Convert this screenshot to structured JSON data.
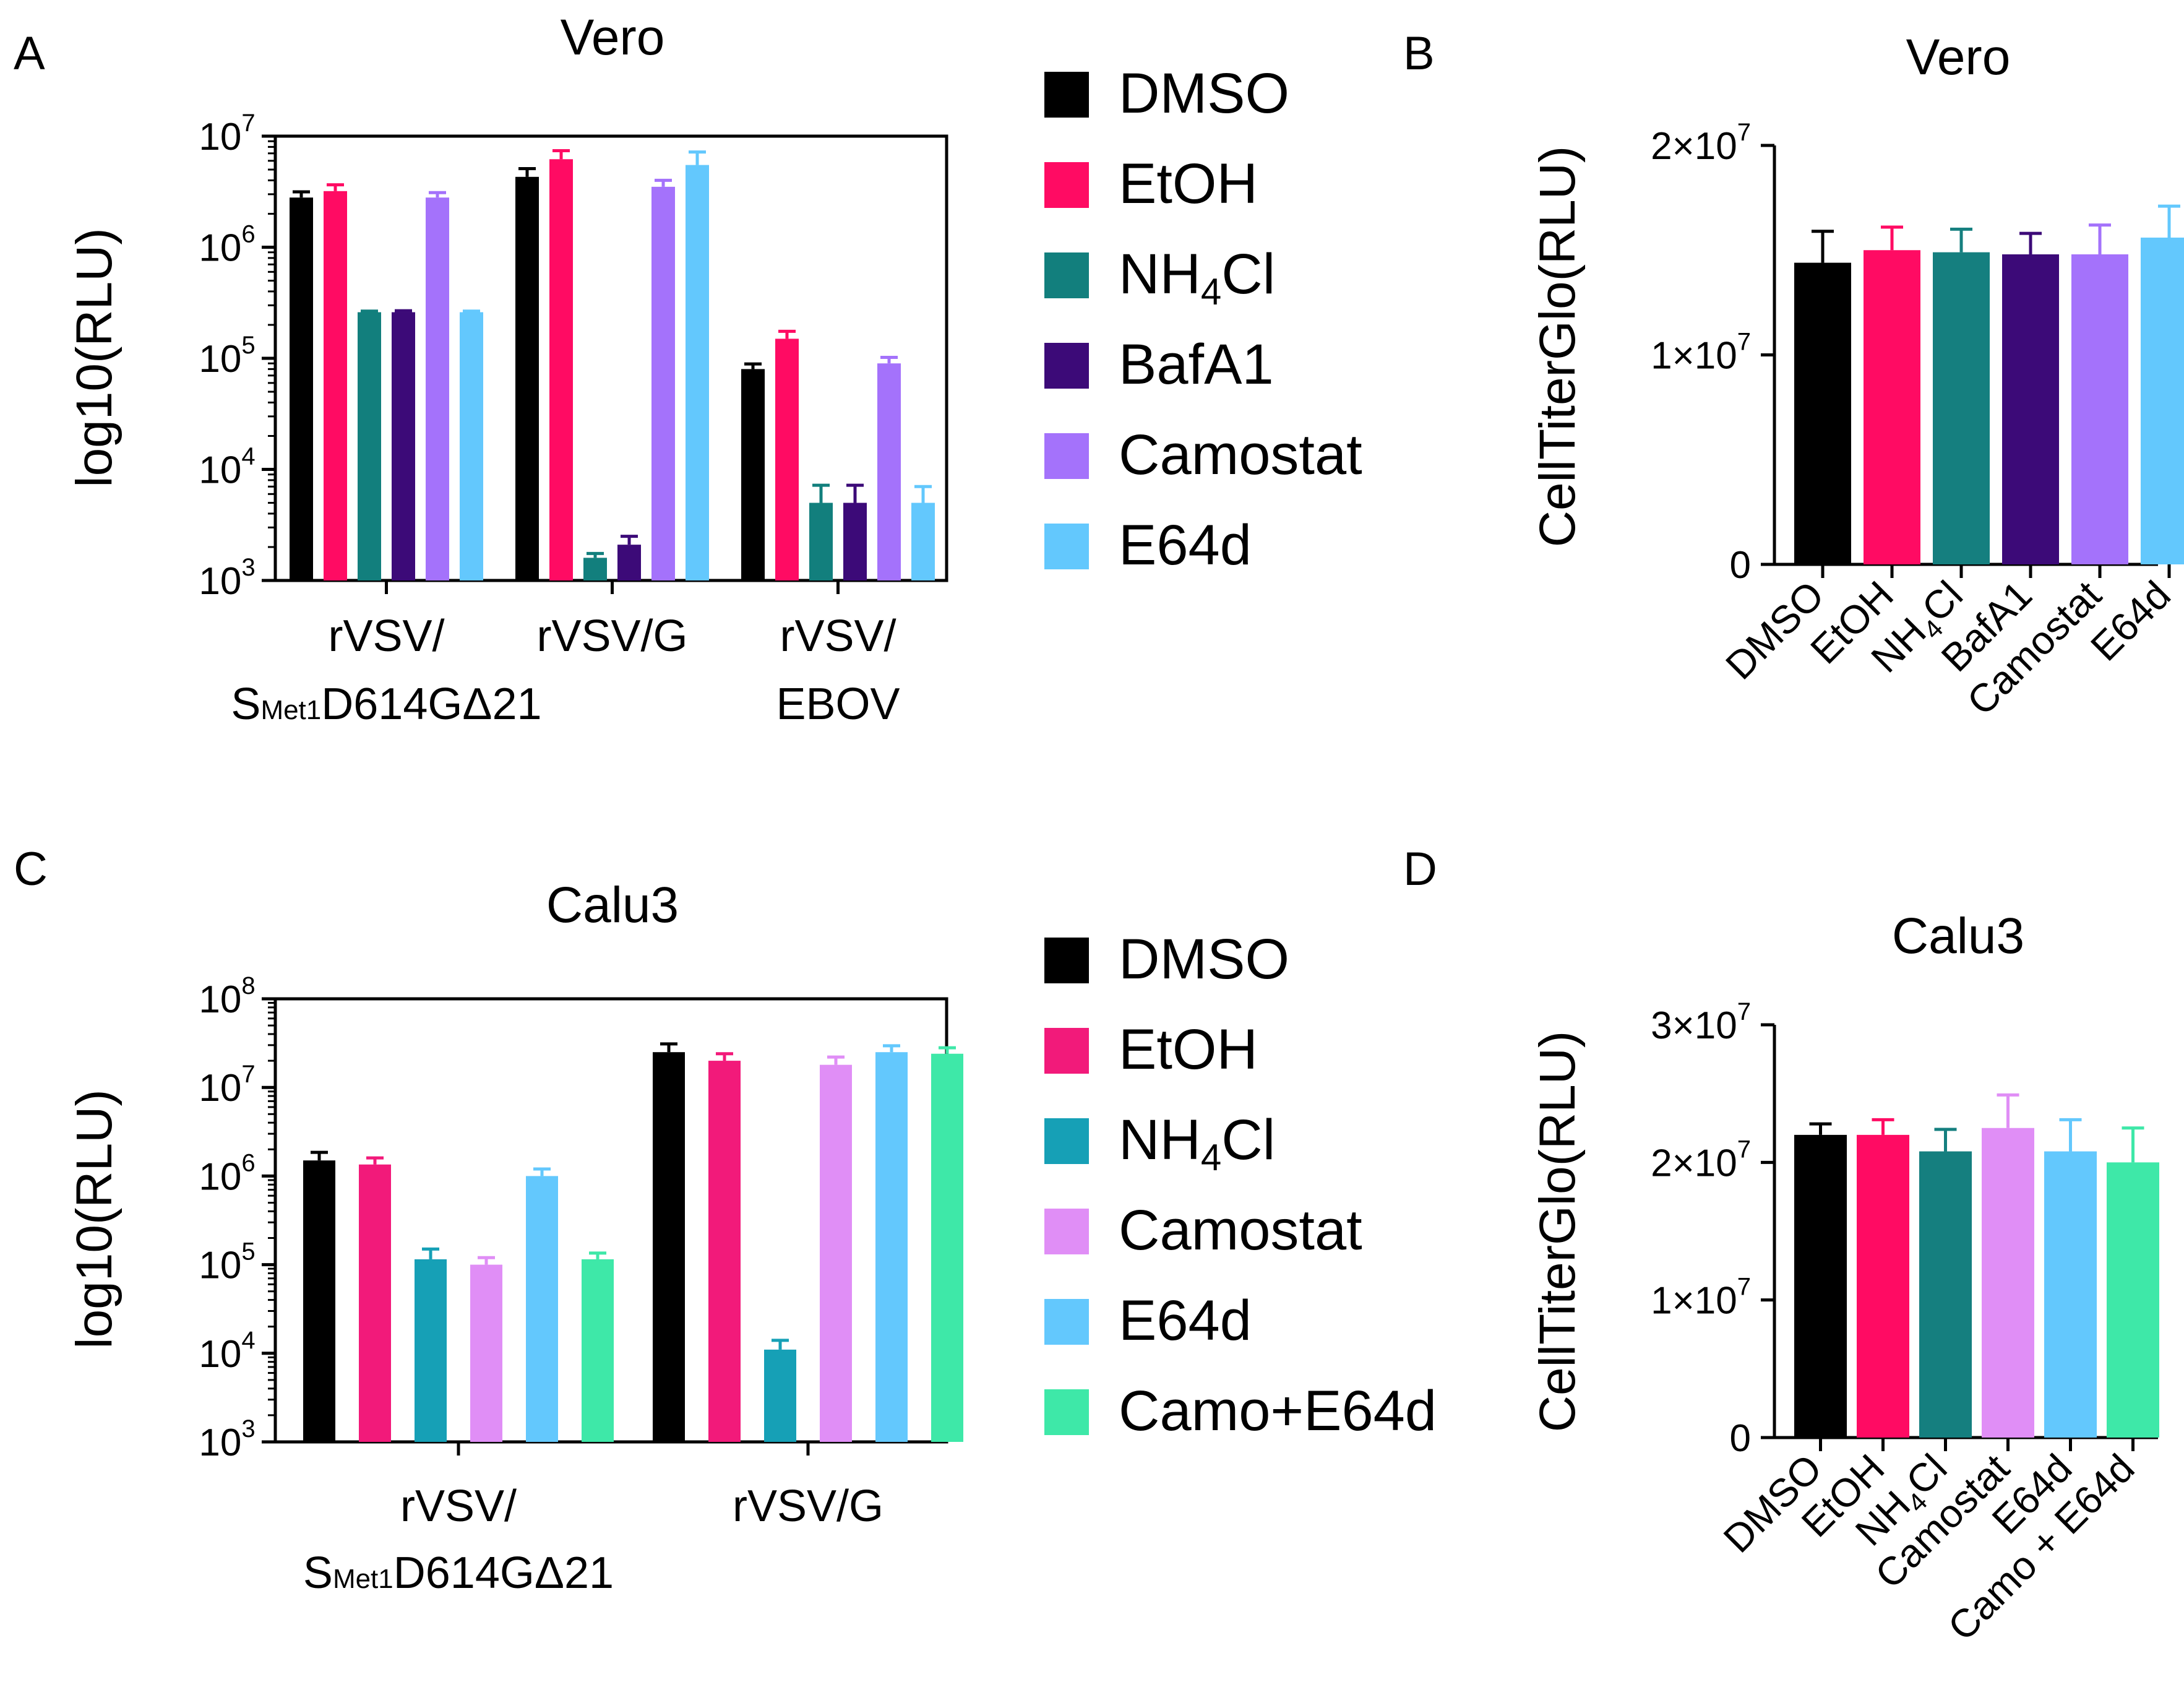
{
  "colors": {
    "DMSO": "#000000",
    "EtOH": "#ff0b63",
    "NH4Cl": "#127f7d",
    "NH4Cl_calu": "#16a0b6",
    "NH4Cl_D": "#157f7f",
    "BafA1": "#3c0a78",
    "Camostat": "#a472fb",
    "Camostat_calu": "#e08ef6",
    "E64d": "#63c8fd",
    "Camo+E64d": "#3ee8a8"
  },
  "chart_data": [
    {
      "id": "A",
      "panel_label": "A",
      "type": "bar",
      "title": "Vero",
      "ylabel": "log10(RLU)",
      "yscale": "log",
      "ylim_exp": [
        3,
        7
      ],
      "y_ticks": [
        {
          "base": "10",
          "exp": "3"
        },
        {
          "base": "10",
          "exp": "4"
        },
        {
          "base": "10",
          "exp": "5"
        },
        {
          "base": "10",
          "exp": "6"
        },
        {
          "base": "10",
          "exp": "7"
        }
      ],
      "categories": [
        {
          "line1": "rVSV/",
          "line2_main": "S",
          "line2_sub": "Met1",
          "line2_rest": "D614GΔ21"
        },
        {
          "line1": "rVSV/G",
          "line2_main": "",
          "line2_sub": "",
          "line2_rest": ""
        },
        {
          "line1": "rVSV/",
          "line2_main": "EBOV",
          "line2_sub": "",
          "line2_rest": ""
        }
      ],
      "series": [
        {
          "name": "DMSO",
          "color": "#000000",
          "values": [
            2800000,
            4300000,
            80000
          ],
          "errors": [
            350000,
            800000,
            9000
          ]
        },
        {
          "name": "EtOH",
          "color": "#ff0b63",
          "values": [
            3200000,
            6200000,
            150000
          ],
          "errors": [
            450000,
            1200000,
            25000
          ]
        },
        {
          "name": "NH4Cl",
          "color": "#127f7d",
          "values": [
            260000,
            1600,
            5000
          ],
          "errors": [
            6000,
            150,
            2200
          ]
        },
        {
          "name": "BafA1",
          "color": "#3c0a78",
          "values": [
            260000,
            2100,
            5000
          ],
          "errors": [
            8000,
            400,
            2200
          ]
        },
        {
          "name": "Camostat",
          "color": "#a472fb",
          "values": [
            2800000,
            3500000,
            90000
          ],
          "errors": [
            300000,
            500000,
            12000
          ]
        },
        {
          "name": "E64d",
          "color": "#63c8fd",
          "values": [
            260000,
            5500000,
            5000
          ],
          "errors": [
            6000,
            1700000,
            2000
          ]
        }
      ],
      "legend": [
        {
          "main": "DMSO",
          "sub": "",
          "rest": "",
          "color": "#000000"
        },
        {
          "main": "EtOH",
          "sub": "",
          "rest": "",
          "color": "#ff0b63"
        },
        {
          "main": "NH",
          "sub": "4",
          "rest": "Cl",
          "color": "#127f7d"
        },
        {
          "main": "BafA1",
          "sub": "",
          "rest": "",
          "color": "#3c0a78"
        },
        {
          "main": "Camostat",
          "sub": "",
          "rest": "",
          "color": "#a472fb"
        },
        {
          "main": "E64d",
          "sub": "",
          "rest": "",
          "color": "#63c8fd"
        }
      ]
    },
    {
      "id": "B",
      "panel_label": "B",
      "type": "bar",
      "title": "Vero",
      "ylabel": "CellTiterGlo(RLU)",
      "yscale": "linear",
      "ylim": [
        0,
        20000000
      ],
      "y_ticks": [
        {
          "value": 0,
          "text": "0",
          "exp": ""
        },
        {
          "value": 10000000,
          "text": "1×10",
          "exp": "7"
        },
        {
          "value": 20000000,
          "text": "2×10",
          "exp": "7"
        }
      ],
      "bars": [
        {
          "label_main": "DMSO",
          "label_sub": "",
          "label_rest": "",
          "color": "#000000",
          "value": 14400000,
          "error": 1500000
        },
        {
          "label_main": "EtOH",
          "label_sub": "",
          "label_rest": "",
          "color": "#ff0b63",
          "value": 15000000,
          "error": 1100000
        },
        {
          "label_main": "NH",
          "label_sub": "4",
          "label_rest": "Cl",
          "color": "#157f7f",
          "value": 14900000,
          "error": 1100000
        },
        {
          "label_main": "BafA1",
          "label_sub": "",
          "label_rest": "",
          "color": "#3c0a78",
          "value": 14800000,
          "error": 1000000
        },
        {
          "label_main": "Camostat",
          "label_sub": "",
          "label_rest": "",
          "color": "#a472fb",
          "value": 14800000,
          "error": 1400000
        },
        {
          "label_main": "E64d",
          "label_sub": "",
          "label_rest": "",
          "color": "#63c8fd",
          "value": 15600000,
          "error": 1500000
        }
      ]
    },
    {
      "id": "C",
      "panel_label": "C",
      "type": "bar",
      "title": "Calu3",
      "ylabel": "log10(RLU)",
      "yscale": "log",
      "ylim_exp": [
        3,
        8
      ],
      "y_ticks": [
        {
          "base": "10",
          "exp": "3"
        },
        {
          "base": "10",
          "exp": "4"
        },
        {
          "base": "10",
          "exp": "5"
        },
        {
          "base": "10",
          "exp": "6"
        },
        {
          "base": "10",
          "exp": "7"
        },
        {
          "base": "10",
          "exp": "8"
        }
      ],
      "categories": [
        {
          "line1": "rVSV/",
          "line2_main": "S",
          "line2_sub": "Met1",
          "line2_rest": "D614GΔ21"
        },
        {
          "line1": "rVSV/G",
          "line2_main": "",
          "line2_sub": "",
          "line2_rest": ""
        }
      ],
      "series": [
        {
          "name": "DMSO",
          "color": "#000000",
          "values": [
            1500000,
            25000000
          ],
          "errors": [
            350000,
            6000000
          ]
        },
        {
          "name": "EtOH",
          "color": "#f21a7a",
          "values": [
            1350000,
            20000000
          ],
          "errors": [
            250000,
            4000000
          ]
        },
        {
          "name": "NH4Cl",
          "color": "#16a0b6",
          "values": [
            115000,
            11000
          ],
          "errors": [
            35000,
            3000
          ]
        },
        {
          "name": "Camostat",
          "color": "#e08ef6",
          "values": [
            100000,
            18000000
          ],
          "errors": [
            20000,
            4000000
          ]
        },
        {
          "name": "E64d",
          "color": "#63c8fd",
          "values": [
            1000000,
            25000000
          ],
          "errors": [
            200000,
            4500000
          ]
        },
        {
          "name": "Camo+E64d",
          "color": "#3ee8a8",
          "values": [
            115000,
            24000000
          ],
          "errors": [
            20000,
            4000000
          ]
        }
      ],
      "legend": [
        {
          "main": "DMSO",
          "sub": "",
          "rest": "",
          "color": "#000000"
        },
        {
          "main": "EtOH",
          "sub": "",
          "rest": "",
          "color": "#f21a7a"
        },
        {
          "main": "NH",
          "sub": "4",
          "rest": "Cl",
          "color": "#16a0b6"
        },
        {
          "main": "Camostat",
          "sub": "",
          "rest": "",
          "color": "#e08ef6"
        },
        {
          "main": "E64d",
          "sub": "",
          "rest": "",
          "color": "#63c8fd"
        },
        {
          "main": "Camo+E64d",
          "sub": "",
          "rest": "",
          "color": "#3ee8a8"
        }
      ]
    },
    {
      "id": "D",
      "panel_label": "D",
      "type": "bar",
      "title": "Calu3",
      "ylabel": "CellTiterGlo(RLU)",
      "yscale": "linear",
      "ylim": [
        0,
        30000000
      ],
      "y_ticks": [
        {
          "value": 0,
          "text": "0",
          "exp": ""
        },
        {
          "value": 10000000,
          "text": "1×10",
          "exp": "7"
        },
        {
          "value": 20000000,
          "text": "2×10",
          "exp": "7"
        },
        {
          "value": 30000000,
          "text": "3×10",
          "exp": "7"
        }
      ],
      "bars": [
        {
          "label_main": "DMSO",
          "label_sub": "",
          "label_rest": "",
          "color": "#000000",
          "value": 22000000,
          "error": 800000
        },
        {
          "label_main": "EtOH",
          "label_sub": "",
          "label_rest": "",
          "color": "#ff0b63",
          "value": 22000000,
          "error": 1100000
        },
        {
          "label_main": "NH",
          "label_sub": "4",
          "label_rest": "Cl",
          "color": "#157f7f",
          "value": 20800000,
          "error": 1600000
        },
        {
          "label_main": "Camostat",
          "label_sub": "",
          "label_rest": "",
          "color": "#e08ef6",
          "value": 22500000,
          "error": 2400000
        },
        {
          "label_main": "E64d",
          "label_sub": "",
          "label_rest": "",
          "color": "#63c8fd",
          "value": 20800000,
          "error": 2300000
        },
        {
          "label_main": "Camo + E64d",
          "label_sub": "",
          "label_rest": "",
          "color": "#3ee8a8",
          "value": 20000000,
          "error": 2500000
        }
      ]
    }
  ]
}
